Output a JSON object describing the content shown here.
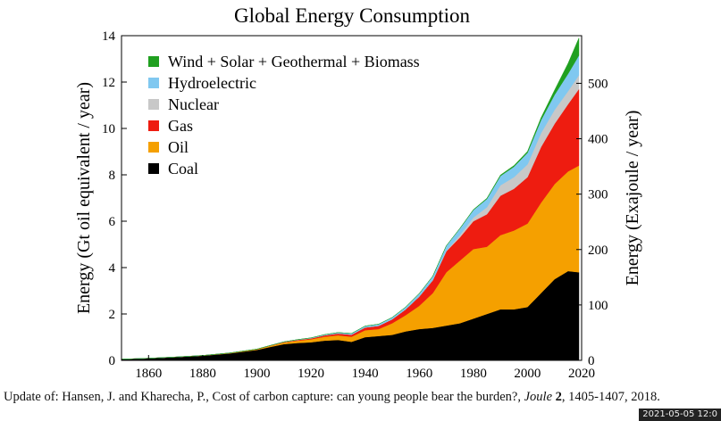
{
  "chart_data": {
    "type": "area",
    "stacked": true,
    "title": "Global Energy Consumption",
    "ylabel": "Energy (Gt oil equivalent / year)",
    "y2label": "Energy (Exajoule / year)",
    "xlim": [
      1850,
      2020
    ],
    "ylim": [
      0,
      14
    ],
    "y2lim": [
      0,
      586
    ],
    "x_ticks": [
      1860,
      1880,
      1900,
      1920,
      1940,
      1960,
      1980,
      2000,
      2020
    ],
    "y_ticks": [
      0,
      2,
      4,
      6,
      8,
      10,
      12,
      14
    ],
    "y2_ticks": [
      0,
      100,
      200,
      300,
      400,
      500
    ],
    "grid": false,
    "legend_position": "top-left",
    "x": [
      1850,
      1860,
      1870,
      1880,
      1890,
      1900,
      1905,
      1910,
      1915,
      1920,
      1925,
      1930,
      1935,
      1940,
      1945,
      1950,
      1955,
      1960,
      1965,
      1970,
      1975,
      1980,
      1985,
      1990,
      1995,
      2000,
      2005,
      2010,
      2015,
      2019
    ],
    "series": [
      {
        "name": "Coal",
        "color": "#000000",
        "values": [
          0.05,
          0.09,
          0.14,
          0.2,
          0.3,
          0.45,
          0.58,
          0.7,
          0.75,
          0.78,
          0.85,
          0.88,
          0.8,
          1.0,
          1.05,
          1.1,
          1.25,
          1.35,
          1.4,
          1.5,
          1.6,
          1.8,
          2.0,
          2.2,
          2.2,
          2.3,
          2.9,
          3.5,
          3.85,
          3.8
        ]
      },
      {
        "name": "Oil",
        "color": "#f5a000",
        "values": [
          0,
          0,
          0.005,
          0.01,
          0.02,
          0.03,
          0.05,
          0.07,
          0.1,
          0.13,
          0.17,
          0.2,
          0.22,
          0.3,
          0.3,
          0.5,
          0.7,
          1.0,
          1.5,
          2.3,
          2.7,
          3.0,
          2.9,
          3.2,
          3.4,
          3.6,
          3.9,
          4.1,
          4.3,
          4.6
        ]
      },
      {
        "name": "Gas",
        "color": "#ee1c10",
        "values": [
          0,
          0,
          0,
          0,
          0,
          0.005,
          0.01,
          0.02,
          0.03,
          0.04,
          0.06,
          0.08,
          0.09,
          0.12,
          0.14,
          0.17,
          0.25,
          0.4,
          0.55,
          0.9,
          1.0,
          1.2,
          1.4,
          1.7,
          1.8,
          2.0,
          2.4,
          2.6,
          2.9,
          3.3
        ]
      },
      {
        "name": "Nuclear",
        "color": "#c8c8c8",
        "values": [
          0,
          0,
          0,
          0,
          0,
          0,
          0,
          0,
          0,
          0,
          0,
          0,
          0,
          0,
          0,
          0,
          0,
          0,
          0.01,
          0.02,
          0.1,
          0.16,
          0.3,
          0.45,
          0.5,
          0.55,
          0.6,
          0.6,
          0.56,
          0.6
        ]
      },
      {
        "name": "Hydroelectric",
        "color": "#80c8f0",
        "values": [
          0,
          0,
          0,
          0,
          0,
          0,
          0.005,
          0.01,
          0.015,
          0.02,
          0.03,
          0.04,
          0.05,
          0.06,
          0.07,
          0.08,
          0.1,
          0.13,
          0.17,
          0.22,
          0.28,
          0.32,
          0.36,
          0.4,
          0.45,
          0.5,
          0.56,
          0.65,
          0.75,
          0.85
        ]
      },
      {
        "name": "Wind + Solar + Geothermal + Biomass",
        "color": "#20a020",
        "values": [
          0,
          0,
          0,
          0,
          0,
          0,
          0,
          0,
          0,
          0,
          0,
          0,
          0,
          0,
          0,
          0,
          0,
          0,
          0,
          0,
          0.01,
          0.02,
          0.03,
          0.04,
          0.05,
          0.06,
          0.1,
          0.2,
          0.45,
          0.75
        ]
      }
    ]
  },
  "citation": {
    "prefix": "Update of: Hansen, J. and Kharecha, P., Cost of carbon capture: can young people bear the burden?, ",
    "journal": "Joule",
    "volume": "2",
    "suffix": ", 1405-1407, 2018."
  },
  "timestamp": "2021-05-05 12:0"
}
